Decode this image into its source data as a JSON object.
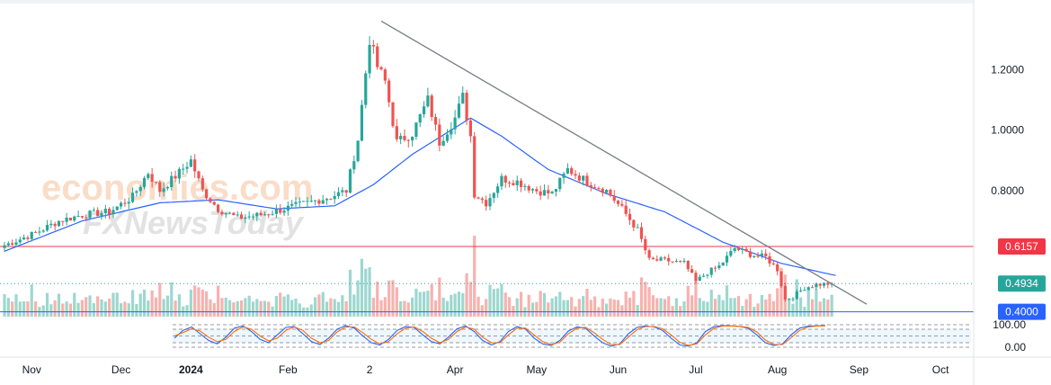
{
  "watermark": {
    "brand": "economies.com",
    "sub": "FXNewsToday"
  },
  "colors": {
    "up": "#26a69a",
    "down": "#ef5350",
    "ma": "#2962ff",
    "resistance": "#f23645",
    "support": "#2962ff",
    "current": "#26a69a",
    "trendline": "#787b86",
    "stoch_k": "#2962ff",
    "stoch_d": "#ff6d00"
  },
  "chart_data": [
    {
      "type": "candlestick",
      "title": "",
      "xlabel": "",
      "ylabel": "",
      "ylim": [
        0.39,
        1.4
      ],
      "y_ticks": [
        "1.2000",
        "1.0000",
        "0.8000"
      ],
      "x_ticks": [
        "Nov",
        "Dec",
        "2024",
        "Feb",
        "2",
        "Apr",
        "May",
        "Jun",
        "Jul",
        "Aug",
        "Sep",
        "Oct"
      ],
      "grid": false,
      "price_anchors_close": [
        [
          0,
          0.62
        ],
        [
          8,
          0.66
        ],
        [
          14,
          0.7
        ],
        [
          20,
          0.72
        ],
        [
          27,
          0.73
        ],
        [
          33,
          0.78
        ],
        [
          37,
          0.86
        ],
        [
          40,
          0.8
        ],
        [
          45,
          0.86
        ],
        [
          48,
          0.9
        ],
        [
          51,
          0.8
        ],
        [
          55,
          0.74
        ],
        [
          60,
          0.71
        ],
        [
          66,
          0.72
        ],
        [
          72,
          0.74
        ],
        [
          78,
          0.76
        ],
        [
          84,
          0.78
        ],
        [
          88,
          0.8
        ],
        [
          91,
          0.97
        ],
        [
          94,
          1.3
        ],
        [
          96,
          1.21
        ],
        [
          98,
          1.16
        ],
        [
          101,
          0.96
        ],
        [
          105,
          0.99
        ],
        [
          109,
          1.1
        ],
        [
          112,
          0.96
        ],
        [
          116,
          1.04
        ],
        [
          118,
          1.11
        ],
        [
          120,
          0.98
        ],
        [
          121,
          0.79
        ],
        [
          124,
          0.76
        ],
        [
          128,
          0.84
        ],
        [
          132,
          0.83
        ],
        [
          137,
          0.8
        ],
        [
          141,
          0.79
        ],
        [
          145,
          0.87
        ],
        [
          150,
          0.83
        ],
        [
          155,
          0.8
        ],
        [
          159,
          0.74
        ],
        [
          163,
          0.67
        ],
        [
          166,
          0.57
        ],
        [
          170,
          0.57
        ],
        [
          175,
          0.56
        ],
        [
          178,
          0.5
        ],
        [
          181,
          0.53
        ],
        [
          184,
          0.55
        ],
        [
          188,
          0.61
        ],
        [
          192,
          0.59
        ],
        [
          196,
          0.58
        ],
        [
          199,
          0.54
        ],
        [
          201,
          0.44
        ],
        [
          203,
          0.45
        ],
        [
          206,
          0.48
        ],
        [
          209,
          0.49
        ],
        [
          213,
          0.4934
        ]
      ],
      "moving_average_anchors": [
        [
          0,
          0.6
        ],
        [
          20,
          0.7
        ],
        [
          40,
          0.76
        ],
        [
          55,
          0.77
        ],
        [
          70,
          0.74
        ],
        [
          85,
          0.75
        ],
        [
          95,
          0.82
        ],
        [
          105,
          0.92
        ],
        [
          115,
          1.0
        ],
        [
          120,
          1.04
        ],
        [
          128,
          0.98
        ],
        [
          140,
          0.87
        ],
        [
          155,
          0.79
        ],
        [
          170,
          0.73
        ],
        [
          185,
          0.63
        ],
        [
          200,
          0.56
        ],
        [
          214,
          0.52
        ]
      ],
      "trendline": {
        "from": [
          97,
          1.36
        ],
        "to": [
          222,
          0.425
        ]
      },
      "levels": [
        {
          "name": "resistance",
          "value": 0.6157,
          "label": "0.6157"
        },
        {
          "name": "current-price",
          "value": 0.4934,
          "label": "0.4934"
        },
        {
          "name": "support",
          "value": 0.4,
          "label": "0.4000"
        }
      ]
    },
    {
      "type": "line",
      "title": "",
      "name": "stochastic",
      "ylim": [
        0,
        100
      ],
      "y_ticks": [
        "100.00",
        "0.00"
      ],
      "bands": [
        80,
        20
      ],
      "series": [
        {
          "name": "",
          "values": [
            40,
            75,
            90,
            60,
            30,
            15,
            45,
            85,
            95,
            70,
            35,
            20,
            55,
            88,
            92,
            60,
            25,
            12,
            40,
            80,
            96,
            85,
            50,
            20,
            10,
            35,
            75,
            92,
            88,
            55,
            25,
            15,
            45,
            82,
            95,
            70,
            30,
            10,
            25,
            70,
            92,
            80,
            40,
            15,
            8,
            30,
            72,
            90,
            85,
            50,
            20,
            5,
            15,
            60,
            88,
            95,
            90,
            75,
            40,
            10,
            5,
            20,
            70,
            92,
            96,
            95,
            92,
            85,
            55,
            20,
            8,
            15,
            55,
            85,
            94,
            95,
            96
          ]
        },
        {
          "name": "",
          "values": [
            50,
            65,
            82,
            72,
            45,
            25,
            35,
            70,
            90,
            80,
            50,
            28,
            40,
            75,
            90,
            75,
            40,
            20,
            30,
            68,
            90,
            90,
            65,
            35,
            15,
            25,
            60,
            85,
            90,
            70,
            40,
            20,
            35,
            70,
            90,
            80,
            45,
            20,
            20,
            55,
            85,
            85,
            55,
            25,
            12,
            22,
            60,
            85,
            88,
            65,
            35,
            12,
            12,
            45,
            78,
            92,
            92,
            82,
            55,
            22,
            8,
            15,
            55,
            85,
            94,
            95,
            93,
            88,
            68,
            32,
            12,
            12,
            42,
            75,
            90,
            94,
            95
          ]
        }
      ]
    }
  ]
}
